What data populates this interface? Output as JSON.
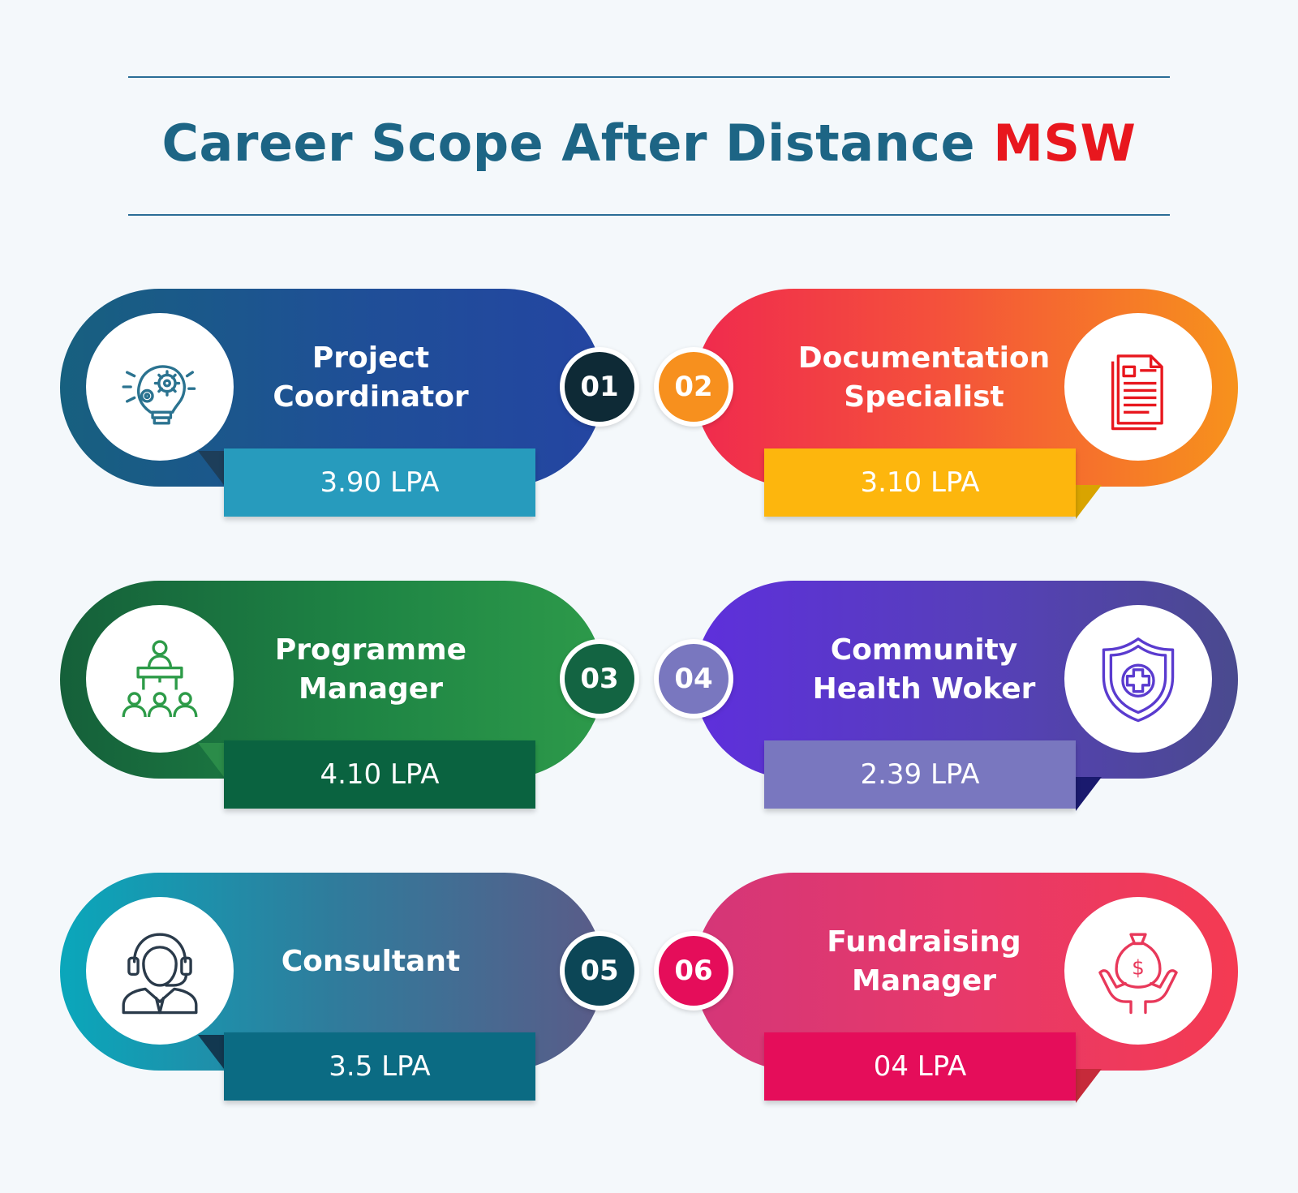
{
  "header": {
    "title_main": "Career Scope After Distance",
    "title_accent": "MSW"
  },
  "cards": [
    {
      "number": "01",
      "title_line1": "Project",
      "title_line2": "Coordinator",
      "salary": "3.90 LPA",
      "icon": "idea-gears-icon"
    },
    {
      "number": "02",
      "title_line1": "Documentation",
      "title_line2": "Specialist",
      "salary": "3.10 LPA",
      "icon": "document-icon"
    },
    {
      "number": "03",
      "title_line1": "Programme",
      "title_line2": "Manager",
      "salary": "4.10 LPA",
      "icon": "presenter-audience-icon"
    },
    {
      "number": "04",
      "title_line1": "Community",
      "title_line2": "Health Woker",
      "salary": "2.39 LPA",
      "icon": "health-shield-icon"
    },
    {
      "number": "05",
      "title_line1": "Consultant",
      "title_line2": "",
      "salary": "3.5 LPA",
      "icon": "headset-agent-icon"
    },
    {
      "number": "06",
      "title_line1": "Fundraising",
      "title_line2": "Manager",
      "salary": "04 LPA",
      "icon": "money-bag-hands-icon"
    }
  ],
  "colors": {
    "title": "#1d6585",
    "accent": "#e8171e",
    "card1": [
      "#1a5e86",
      "#244aa0"
    ],
    "card2": [
      "#f02c4c",
      "#f7901e"
    ],
    "card3": [
      "#1c6b3d",
      "#2a9a4a"
    ],
    "card4": [
      "#5b2fd6",
      "#4a4a92"
    ],
    "card5": [
      "#0ea3b8",
      "#585a8a"
    ],
    "card6": [
      "#d63a78",
      "#f23a56"
    ]
  }
}
